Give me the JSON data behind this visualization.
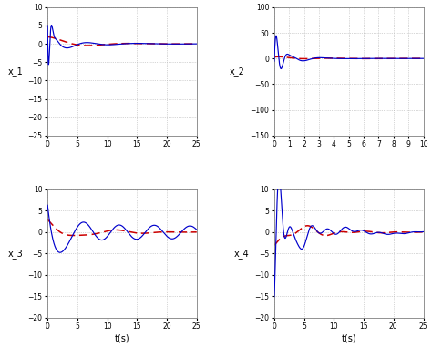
{
  "fig_width": 4.74,
  "fig_height": 3.92,
  "dpi": 100,
  "background_color": "#ffffff",
  "plot_bg": "#ffffff",
  "line_blue": "#0000cc",
  "line_red": "#cc0000",
  "subplots": [
    {
      "ylabel": "x_1",
      "xlabel": "",
      "xlim": [
        0,
        25
      ],
      "ylim": [
        -25,
        10
      ],
      "yticks": [
        -25,
        -20,
        -15,
        -10,
        -5,
        0,
        5,
        10
      ],
      "xticks": [
        0,
        5,
        10,
        15,
        20,
        25
      ]
    },
    {
      "ylabel": "x_2",
      "xlabel": "",
      "xlim": [
        0,
        10
      ],
      "ylim": [
        -150,
        100
      ],
      "yticks": [
        -150,
        -100,
        -50,
        0,
        50,
        100
      ],
      "xticks": [
        0,
        1,
        2,
        3,
        4,
        5,
        6,
        7,
        8,
        9,
        10
      ]
    },
    {
      "ylabel": "x_3",
      "xlabel": "t(s)",
      "xlim": [
        0,
        25
      ],
      "ylim": [
        -20,
        10
      ],
      "yticks": [
        -20,
        -15,
        -10,
        -5,
        0,
        5,
        10
      ],
      "xticks": [
        0,
        5,
        10,
        15,
        20,
        25
      ]
    },
    {
      "ylabel": "x_4",
      "xlabel": "t(s)",
      "xlim": [
        0,
        25
      ],
      "ylim": [
        -20,
        10
      ],
      "yticks": [
        -20,
        -15,
        -10,
        -5,
        0,
        5,
        10
      ],
      "xticks": [
        0,
        5,
        10,
        15,
        20,
        25
      ]
    }
  ]
}
